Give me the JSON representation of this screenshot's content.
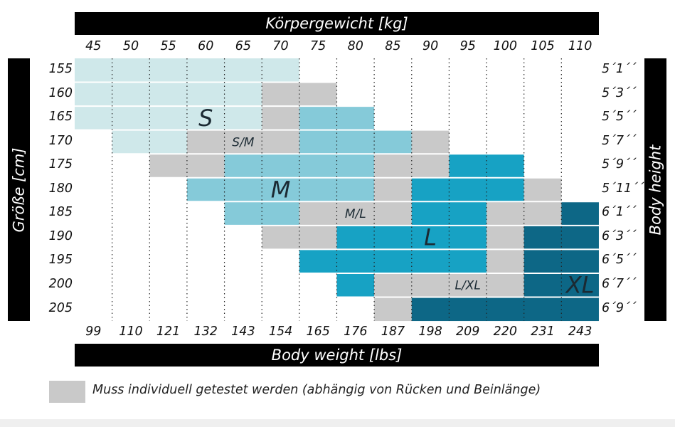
{
  "chart_data": {
    "type": "heatmap",
    "title_top": "Körpergewicht [kg]",
    "title_bottom": "Body weight [lbs]",
    "ylabel_left": "Größe [cm]",
    "ylabel_right": "Body height",
    "x_kg": [
      "45",
      "50",
      "55",
      "60",
      "65",
      "70",
      "75",
      "80",
      "85",
      "90",
      "95",
      "100",
      "105",
      "110"
    ],
    "x_lbs": [
      "99",
      "110",
      "121",
      "132",
      "143",
      "154",
      "165",
      "176",
      "187",
      "198",
      "209",
      "220",
      "231",
      "243"
    ],
    "y_cm": [
      "155",
      "160",
      "165",
      "170",
      "175",
      "180",
      "185",
      "190",
      "195",
      "200",
      "205"
    ],
    "y_ft": [
      "5´1´´",
      "5´3´´",
      "5´5´´",
      "5´7´´",
      "5´9´´",
      "5´11´´",
      "6´1´´",
      "6´3´´",
      "6´5´´",
      "6´7´´",
      "6´9´´"
    ],
    "categories": {
      "S": "#cfe8ea",
      "M": "#85cad9",
      "L": "#17a2c4",
      "XL": "#0d6786",
      "test": "#c9c9c9"
    },
    "cells": [
      {
        "row": "155",
        "from_kg": "45",
        "to_kg": "70",
        "size": "S"
      },
      {
        "row": "160",
        "from_kg": "45",
        "to_kg": "65",
        "size": "S"
      },
      {
        "row": "160",
        "from_kg": "70",
        "to_kg": "75",
        "size": "test"
      },
      {
        "row": "165",
        "from_kg": "45",
        "to_kg": "65",
        "size": "S"
      },
      {
        "row": "165",
        "from_kg": "70",
        "to_kg": "70",
        "size": "test"
      },
      {
        "row": "165",
        "from_kg": "75",
        "to_kg": "80",
        "size": "M"
      },
      {
        "row": "170",
        "from_kg": "50",
        "to_kg": "55",
        "size": "S"
      },
      {
        "row": "170",
        "from_kg": "60",
        "to_kg": "70",
        "size": "test"
      },
      {
        "row": "170",
        "from_kg": "75",
        "to_kg": "85",
        "size": "M"
      },
      {
        "row": "170",
        "from_kg": "90",
        "to_kg": "90",
        "size": "test"
      },
      {
        "row": "175",
        "from_kg": "55",
        "to_kg": "60",
        "size": "test"
      },
      {
        "row": "175",
        "from_kg": "65",
        "to_kg": "80",
        "size": "M"
      },
      {
        "row": "175",
        "from_kg": "85",
        "to_kg": "90",
        "size": "test"
      },
      {
        "row": "175",
        "from_kg": "95",
        "to_kg": "100",
        "size": "L"
      },
      {
        "row": "180",
        "from_kg": "60",
        "to_kg": "80",
        "size": "M"
      },
      {
        "row": "180",
        "from_kg": "85",
        "to_kg": "85",
        "size": "test"
      },
      {
        "row": "180",
        "from_kg": "90",
        "to_kg": "100",
        "size": "L"
      },
      {
        "row": "180",
        "from_kg": "105",
        "to_kg": "105",
        "size": "test"
      },
      {
        "row": "185",
        "from_kg": "65",
        "to_kg": "70",
        "size": "M"
      },
      {
        "row": "185",
        "from_kg": "75",
        "to_kg": "85",
        "size": "test"
      },
      {
        "row": "185",
        "from_kg": "90",
        "to_kg": "95",
        "size": "L"
      },
      {
        "row": "185",
        "from_kg": "100",
        "to_kg": "105",
        "size": "test"
      },
      {
        "row": "185",
        "from_kg": "110",
        "to_kg": "110",
        "size": "XL"
      },
      {
        "row": "190",
        "from_kg": "70",
        "to_kg": "75",
        "size": "test"
      },
      {
        "row": "190",
        "from_kg": "80",
        "to_kg": "95",
        "size": "L"
      },
      {
        "row": "190",
        "from_kg": "100",
        "to_kg": "100",
        "size": "test"
      },
      {
        "row": "190",
        "from_kg": "105",
        "to_kg": "110",
        "size": "XL"
      },
      {
        "row": "195",
        "from_kg": "75",
        "to_kg": "95",
        "size": "L"
      },
      {
        "row": "195",
        "from_kg": "100",
        "to_kg": "100",
        "size": "test"
      },
      {
        "row": "195",
        "from_kg": "105",
        "to_kg": "110",
        "size": "XL"
      },
      {
        "row": "200",
        "from_kg": "80",
        "to_kg": "80",
        "size": "L"
      },
      {
        "row": "200",
        "from_kg": "85",
        "to_kg": "100",
        "size": "test"
      },
      {
        "row": "200",
        "from_kg": "105",
        "to_kg": "110",
        "size": "XL"
      },
      {
        "row": "205",
        "from_kg": "85",
        "to_kg": "85",
        "size": "test"
      },
      {
        "row": "205",
        "from_kg": "90",
        "to_kg": "110",
        "size": "XL"
      }
    ],
    "zone_labels": [
      {
        "text": "S",
        "row": "165",
        "kg": "60",
        "size": "big"
      },
      {
        "text": "S/M",
        "row": "170",
        "kg": "65",
        "size": "small"
      },
      {
        "text": "M",
        "row": "180",
        "kg": "70",
        "size": "big"
      },
      {
        "text": "M/L",
        "row": "185",
        "kg": "80",
        "size": "small"
      },
      {
        "text": "L",
        "row": "190",
        "kg": "90",
        "size": "big"
      },
      {
        "text": "L/XL",
        "row": "200",
        "kg": "95",
        "size": "small"
      },
      {
        "text": "XL",
        "row": "200",
        "kg": "110",
        "size": "big"
      }
    ]
  },
  "legend": {
    "text": "Muss individuell getestet werden (abhängig von Rücken und Beinlänge)",
    "swatch_color": "#c9c9c9"
  }
}
